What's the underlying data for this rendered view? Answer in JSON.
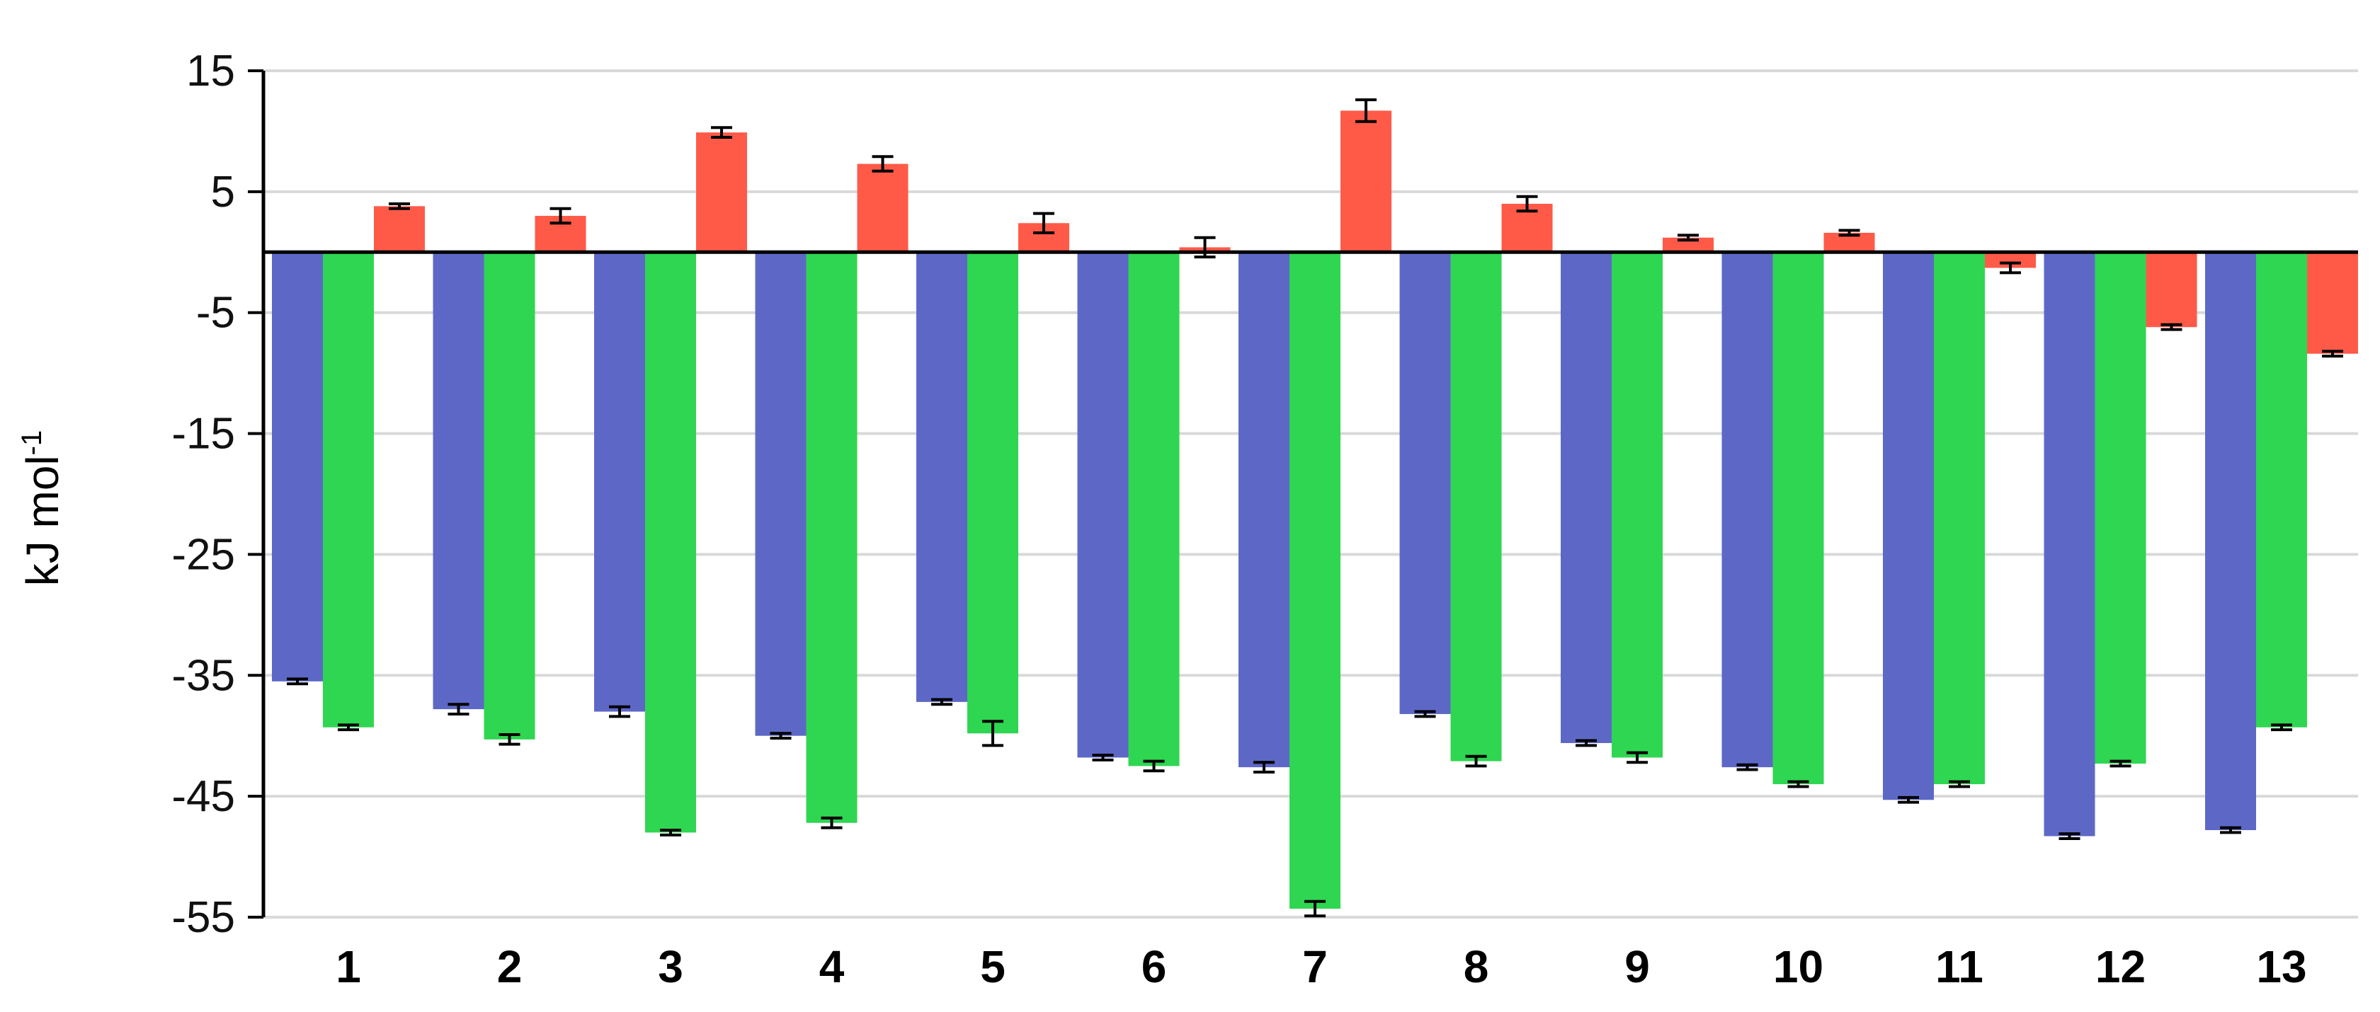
{
  "chart_data": {
    "type": "bar",
    "title": "",
    "xlabel": "",
    "ylabel": "kJ mol-1",
    "ylabel_main": "kJ mol",
    "ylabel_sup": "-1",
    "ylim": [
      -55,
      15
    ],
    "yticks": [
      15,
      5,
      -5,
      -15,
      -25,
      -35,
      -45,
      -55
    ],
    "grid": true,
    "legend": "none",
    "categories": [
      "1",
      "2",
      "3",
      "4",
      "5",
      "6",
      "7",
      "8",
      "9",
      "10",
      "11",
      "12",
      "13"
    ],
    "series": [
      {
        "color": "#5d68c6",
        "values": [
          -35.5,
          -37.8,
          -38.0,
          -40.0,
          -37.2,
          -41.8,
          -42.6,
          -38.2,
          -40.6,
          -42.6,
          -45.3,
          -48.3,
          -47.8
        ],
        "errors": [
          0.2,
          0.4,
          0.4,
          0.2,
          0.2,
          0.2,
          0.4,
          0.2,
          0.2,
          0.2,
          0.2,
          0.2,
          0.2
        ]
      },
      {
        "color": "#2fd651",
        "values": [
          -39.3,
          -40.3,
          -48.0,
          -47.2,
          -39.8,
          -42.5,
          -54.3,
          -42.1,
          -41.8,
          -44.0,
          -44.0,
          -42.3,
          -39.3
        ],
        "errors": [
          0.2,
          0.4,
          0.2,
          0.4,
          1.0,
          0.4,
          0.6,
          0.4,
          0.4,
          0.2,
          0.2,
          0.2,
          0.2
        ]
      },
      {
        "color": "#ff5a48",
        "values": [
          3.8,
          3.0,
          9.9,
          7.3,
          2.4,
          0.4,
          11.7,
          4.0,
          1.2,
          1.6,
          -1.3,
          -6.2,
          -8.4
        ],
        "errors": [
          0.2,
          0.6,
          0.4,
          0.6,
          0.8,
          0.8,
          0.9,
          0.6,
          0.2,
          0.2,
          0.4,
          0.2,
          0.2
        ]
      }
    ]
  }
}
